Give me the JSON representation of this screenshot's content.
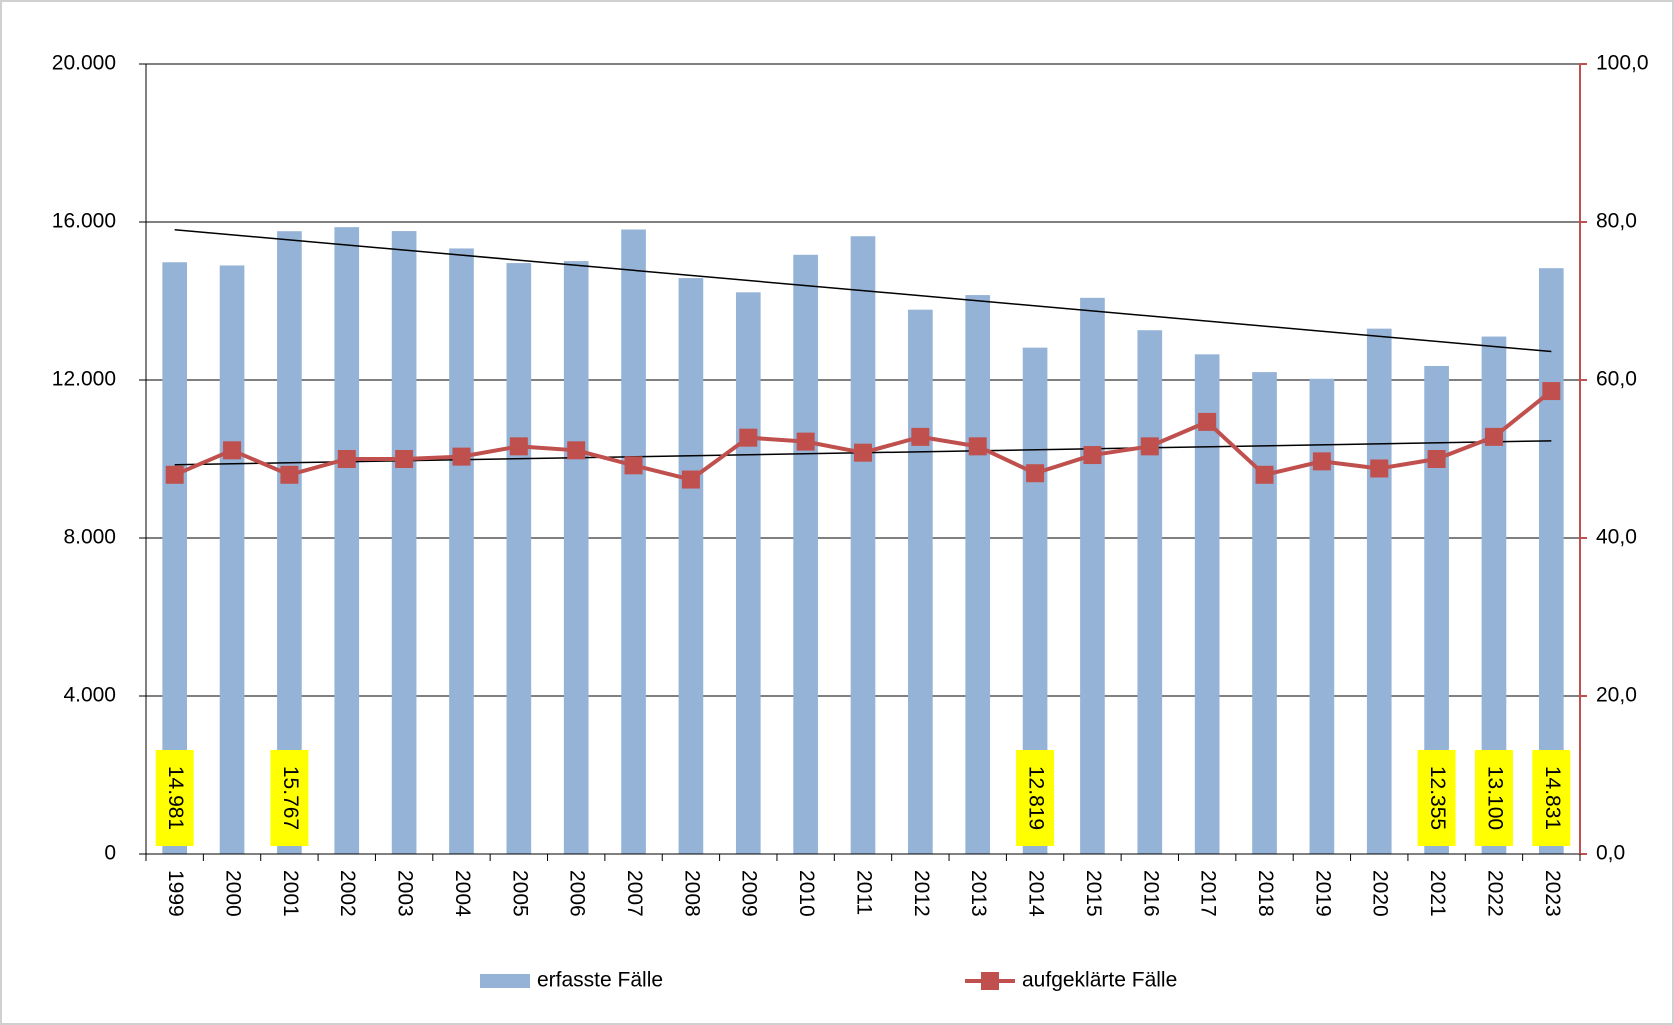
{
  "chart_data": {
    "type": "bar-line",
    "categories": [
      "1999",
      "2000",
      "2001",
      "2002",
      "2003",
      "2004",
      "2005",
      "2006",
      "2007",
      "2008",
      "2009",
      "2010",
      "2011",
      "2012",
      "2013",
      "2014",
      "2015",
      "2016",
      "2017",
      "2018",
      "2019",
      "2020",
      "2021",
      "2022",
      "2023"
    ],
    "series": [
      {
        "name": "erfasste Fälle",
        "type": "bar",
        "color": "#95b3d7",
        "values": [
          14981,
          14900,
          15767,
          15870,
          15770,
          15330,
          14960,
          15010,
          15810,
          14580,
          14220,
          15170,
          15640,
          13780,
          14150,
          12819,
          14080,
          13260,
          12650,
          12200,
          12030,
          13300,
          12355,
          13100,
          14831
        ],
        "value_labels": [
          "14.981",
          null,
          "15.767",
          null,
          null,
          null,
          null,
          null,
          null,
          null,
          null,
          null,
          null,
          null,
          null,
          "12.819",
          null,
          null,
          null,
          null,
          null,
          null,
          "12.355",
          "13.100",
          "14.831"
        ]
      },
      {
        "name": "aufgeklärte Fälle",
        "type": "line",
        "axis": "y2",
        "color": "#c0504d",
        "values": [
          48.0,
          51.1,
          48.0,
          50.0,
          50.0,
          50.3,
          51.6,
          51.1,
          49.2,
          47.4,
          52.7,
          52.2,
          50.8,
          52.8,
          51.6,
          48.2,
          50.5,
          51.6,
          54.7,
          48.0,
          49.7,
          48.8,
          50.0,
          52.8,
          58.6
        ]
      }
    ],
    "ylim": [
      0,
      20000
    ],
    "yticks": [
      0,
      {
        "value": 4000,
        "label": "4.000"
      },
      {
        "value": 8000,
        "label": "8.000"
      },
      {
        "value": 12000,
        "label": "12.000"
      },
      {
        "value": 16000,
        "label": "16.000"
      },
      {
        "value": 20000,
        "label": "20.000"
      }
    ],
    "y2lim": [
      0,
      100
    ],
    "y2ticks": [
      {
        "value": 0,
        "label": "0,0"
      },
      {
        "value": 20,
        "label": "20,0"
      },
      {
        "value": 40,
        "label": "40,0"
      },
      {
        "value": 60,
        "label": "60,0"
      },
      {
        "value": 80,
        "label": "80,0"
      },
      {
        "value": 100,
        "label": "100,0"
      }
    ],
    "grid": true,
    "trendline": true,
    "legend": "bottom"
  }
}
